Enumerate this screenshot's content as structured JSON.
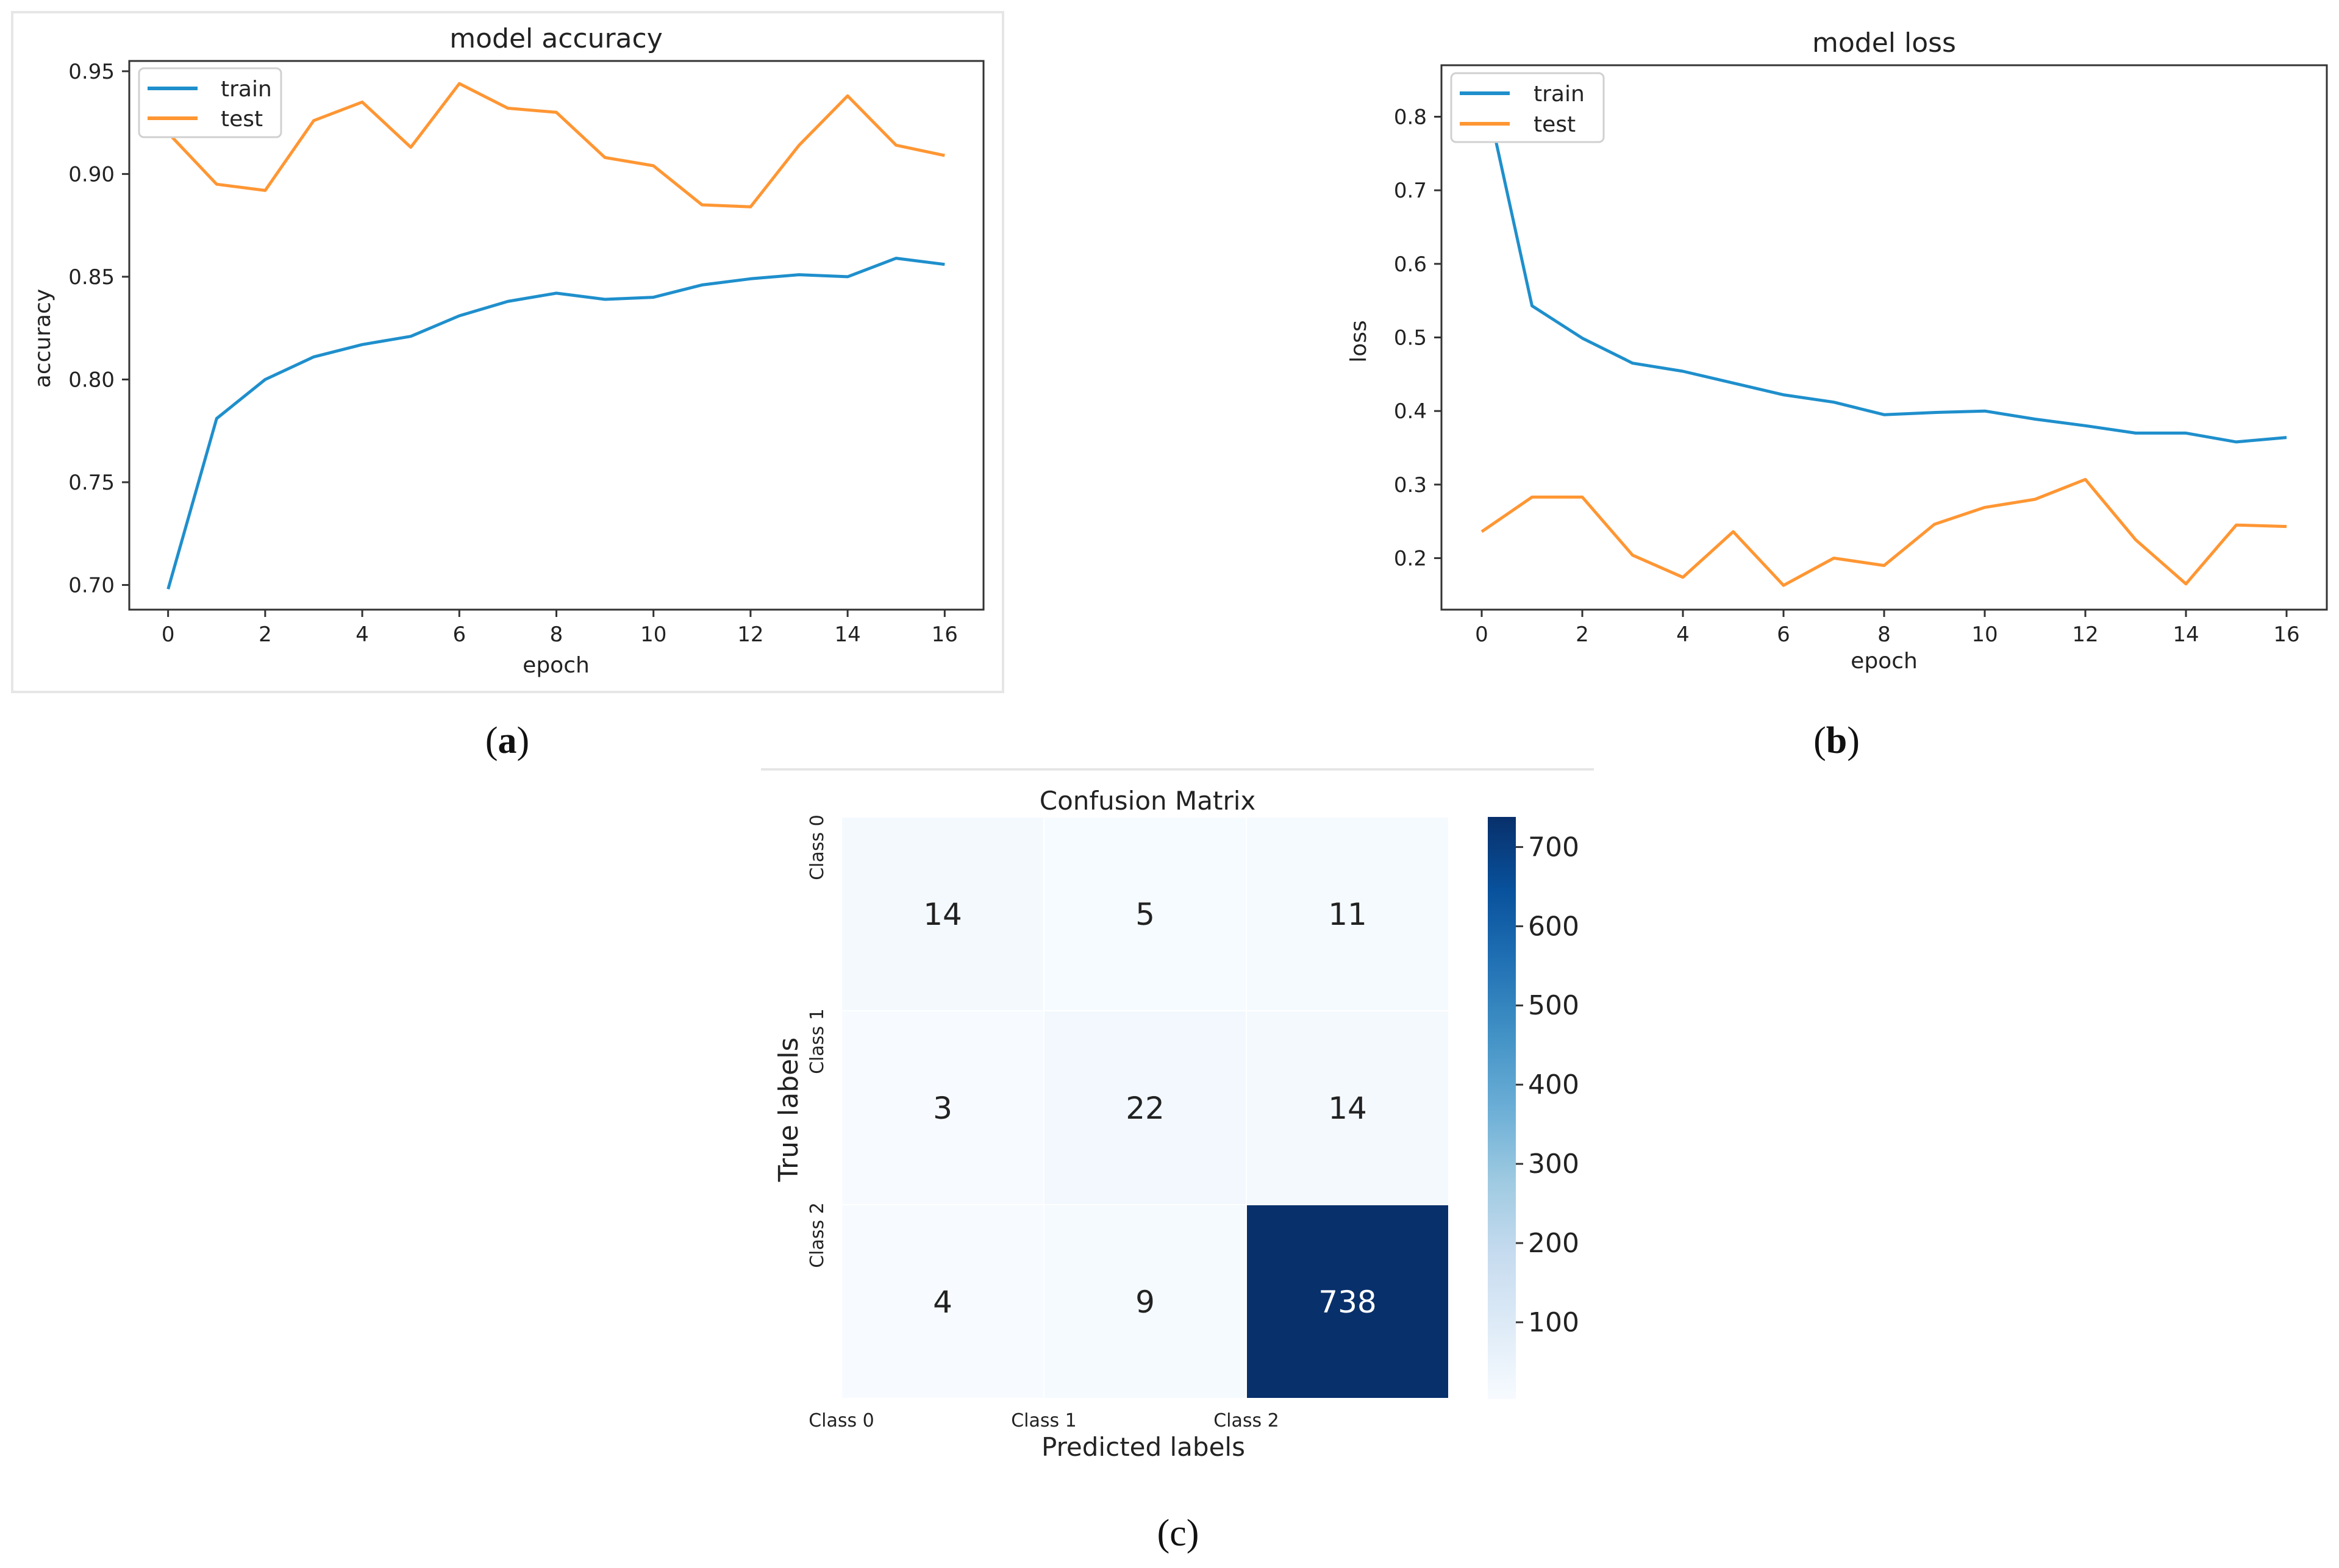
{
  "captions": {
    "a_open": "(",
    "a_letter": "a",
    "a_close": ")",
    "b_open": "(",
    "b_letter": "b",
    "b_close": ")",
    "c": "(c)"
  },
  "chart_data": [
    {
      "id": "accuracy",
      "type": "line",
      "title": "model accuracy",
      "xlabel": "epoch",
      "ylabel": "accuracy",
      "xlim": [
        -0.8,
        16.8
      ],
      "ylim": [
        0.688,
        0.955
      ],
      "xticks": [
        "0",
        "2",
        "4",
        "6",
        "8",
        "10",
        "12",
        "14",
        "16"
      ],
      "yticks": [
        "0.70",
        "0.75",
        "0.80",
        "0.85",
        "0.90",
        "0.95"
      ],
      "x": [
        0,
        1,
        2,
        3,
        4,
        5,
        6,
        7,
        8,
        9,
        10,
        11,
        12,
        13,
        14,
        15,
        16
      ],
      "series": [
        {
          "name": "train",
          "color": "#1f8fcc",
          "values": [
            0.698,
            0.781,
            0.8,
            0.811,
            0.817,
            0.821,
            0.831,
            0.838,
            0.842,
            0.839,
            0.84,
            0.846,
            0.849,
            0.851,
            0.85,
            0.859,
            0.856
          ]
        },
        {
          "name": "test",
          "color": "#ff9633",
          "values": [
            0.92,
            0.895,
            0.892,
            0.926,
            0.935,
            0.913,
            0.944,
            0.932,
            0.93,
            0.908,
            0.904,
            0.885,
            0.884,
            0.914,
            0.938,
            0.914,
            0.909
          ]
        }
      ],
      "legend": "upper-left"
    },
    {
      "id": "loss",
      "type": "line",
      "title": "model loss",
      "xlabel": "epoch",
      "ylabel": "loss",
      "xlim": [
        -0.8,
        16.8
      ],
      "ylim": [
        0.13,
        0.87
      ],
      "xticks": [
        "0",
        "2",
        "4",
        "6",
        "8",
        "10",
        "12",
        "14",
        "16"
      ],
      "yticks": [
        "0.2",
        "0.3",
        "0.4",
        "0.5",
        "0.6",
        "0.7",
        "0.8"
      ],
      "x": [
        0,
        1,
        2,
        3,
        4,
        5,
        6,
        7,
        8,
        9,
        10,
        11,
        12,
        13,
        14,
        15,
        16
      ],
      "series": [
        {
          "name": "train",
          "color": "#1f8fcc",
          "values": [
            0.855,
            0.543,
            0.499,
            0.465,
            0.454,
            0.438,
            0.422,
            0.412,
            0.395,
            0.398,
            0.4,
            0.389,
            0.38,
            0.37,
            0.37,
            0.358,
            0.364
          ]
        },
        {
          "name": "test",
          "color": "#ff9633",
          "values": [
            0.236,
            0.283,
            0.283,
            0.204,
            0.174,
            0.236,
            0.163,
            0.2,
            0.19,
            0.246,
            0.269,
            0.28,
            0.307,
            0.225,
            0.165,
            0.245,
            0.243
          ]
        }
      ],
      "legend": "upper-left"
    },
    {
      "id": "confusion",
      "type": "heatmap",
      "title": "Confusion Matrix",
      "xlabel": "Predicted labels",
      "ylabel": "True labels",
      "xticks": [
        "Class 0",
        "Class 1",
        "Class 2"
      ],
      "yticks": [
        "Class 0",
        "Class 1",
        "Class 2"
      ],
      "values": [
        [
          14,
          5,
          11
        ],
        [
          3,
          22,
          14
        ],
        [
          4,
          9,
          738
        ]
      ],
      "colormap": "Blues",
      "colorbar_range": [
        3,
        738
      ],
      "colorbar_ticks": [
        "100",
        "200",
        "300",
        "400",
        "500",
        "600",
        "700"
      ]
    }
  ]
}
